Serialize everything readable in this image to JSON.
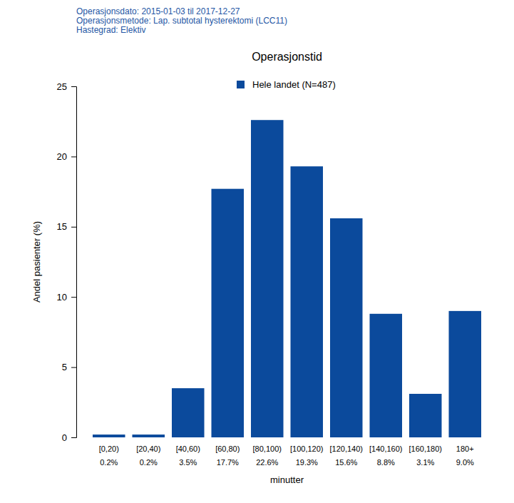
{
  "chart_data": {
    "type": "bar",
    "title": "Operasjonstid",
    "subtitle": [
      "Operasjonsdato: 2015-01-03 til 2017-12-27",
      "Operasjonsmetode: Lap. subtotal hysterektomi (LCC11)",
      "Hastegrad: Elektiv"
    ],
    "x_label": "minutter",
    "y_label": "Andel pasienter (%)",
    "categories": [
      "[0,20)",
      "[20,40)",
      "[40,60)",
      "[60,80)",
      "[80,100)",
      "[100,120)",
      "[120,140)",
      "[140,160)",
      "[160,180)",
      "180+"
    ],
    "series": [
      {
        "name": "Hele landet (N=487)",
        "color": "#0b4a9c",
        "values": [
          0.2,
          0.2,
          3.5,
          17.7,
          22.6,
          19.3,
          15.6,
          8.8,
          3.1,
          9.0
        ],
        "value_labels": [
          "0.2%",
          "0.2%",
          "3.5%",
          "17.7%",
          "22.6%",
          "19.3%",
          "15.6%",
          "8.8%",
          "3.1%",
          "9.0%"
        ]
      }
    ],
    "ylim": [
      0,
      25
    ],
    "yticks": [
      0,
      5,
      10,
      15,
      20,
      25
    ],
    "grid": false,
    "legend": "top",
    "data_labels": true
  }
}
